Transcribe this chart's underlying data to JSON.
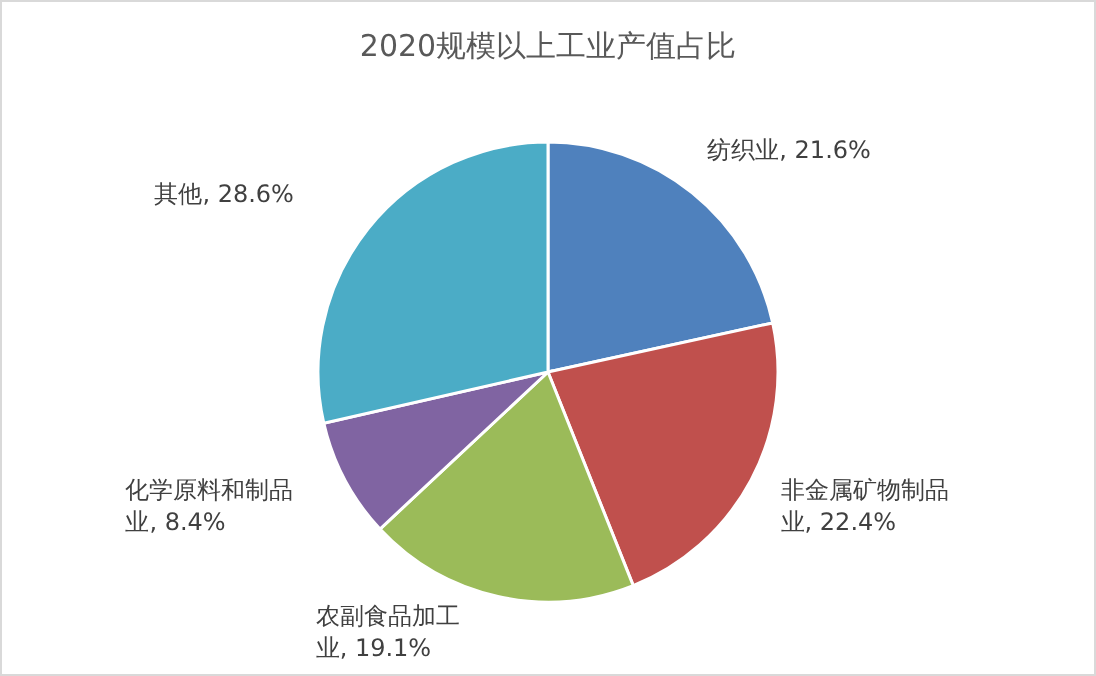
{
  "chart_data": {
    "type": "pie",
    "title": "2020规模以上工业产值占比",
    "categories": [
      "纺织业",
      "非金属矿物制品业",
      "农副食品加工业",
      "化学原料和制品业",
      "其他"
    ],
    "values": [
      21.6,
      22.4,
      19.1,
      8.4,
      28.6
    ],
    "value_labels": [
      "21.6%",
      "22.4%",
      "19.1%",
      "8.4%",
      "28.6%"
    ],
    "colors": [
      "#4f81bd",
      "#c0504d",
      "#9bbb59",
      "#8064a2",
      "#4bacc6"
    ],
    "legend": false
  }
}
